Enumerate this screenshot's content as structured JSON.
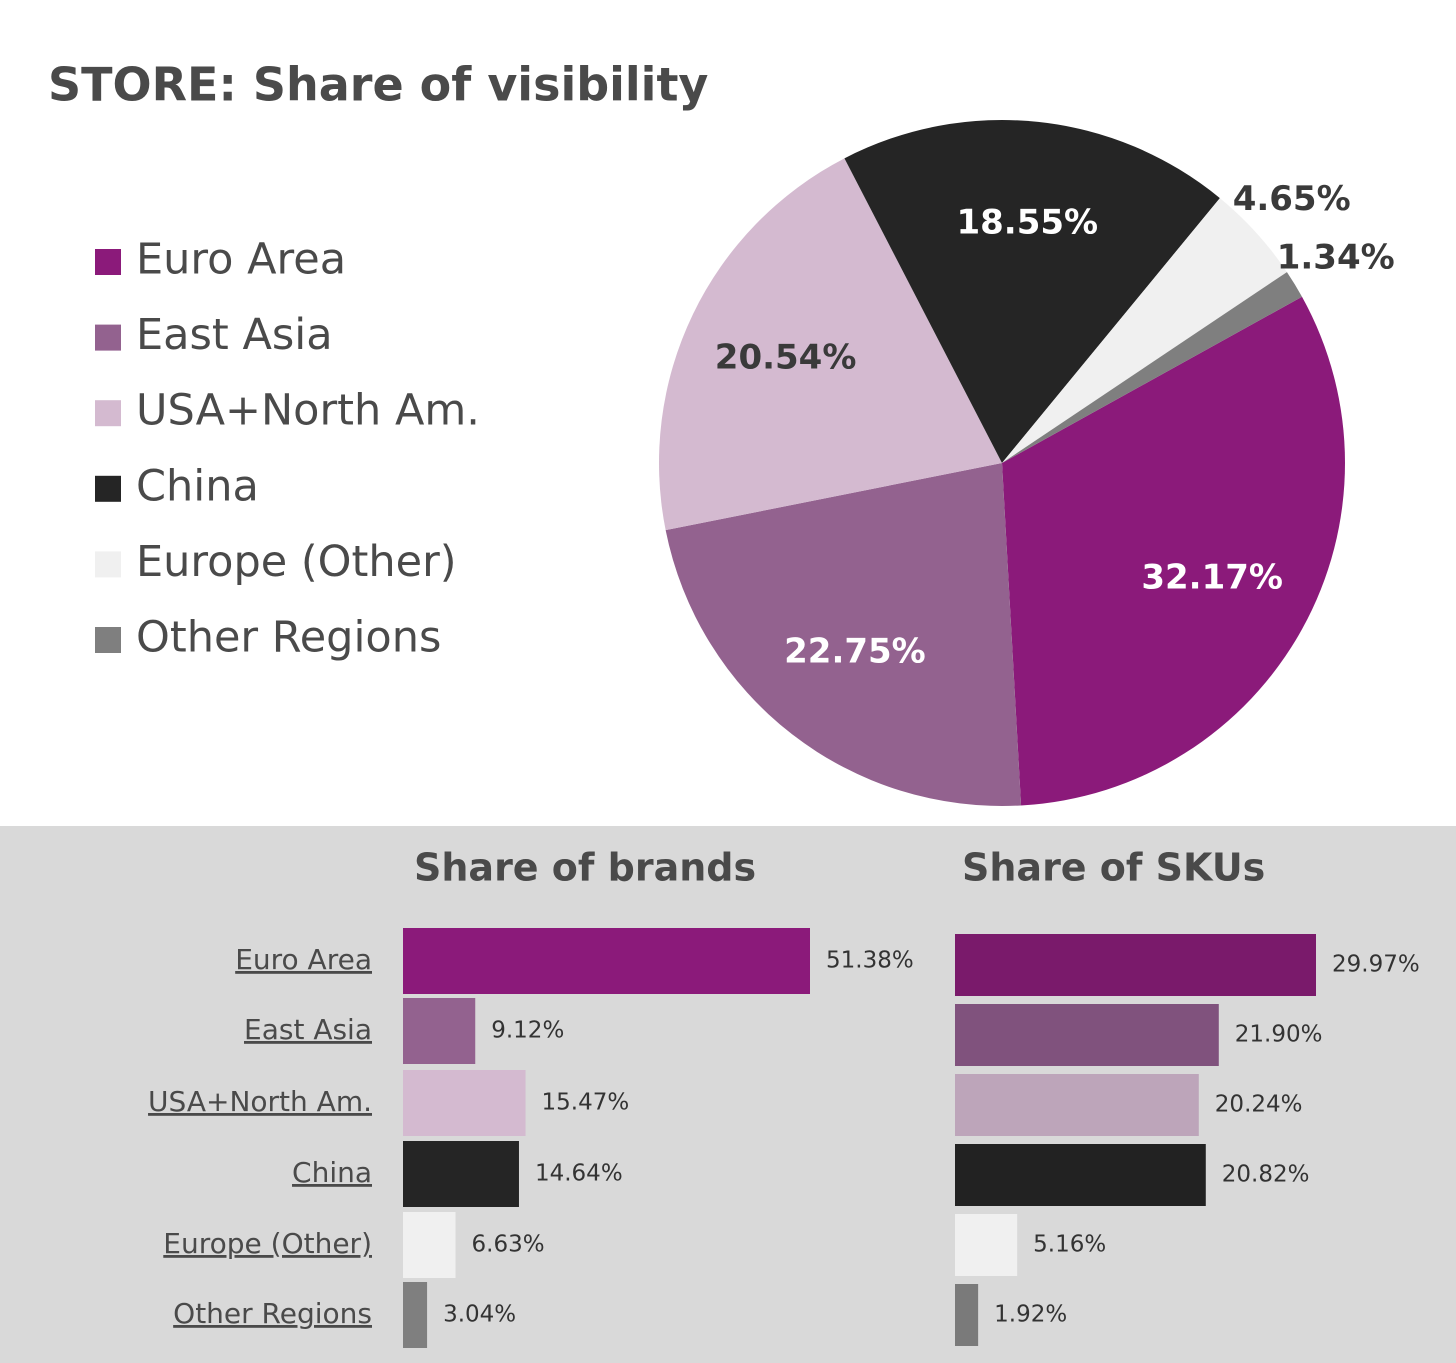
{
  "chart_data": [
    {
      "type": "pie",
      "title": "STORE: Share of visibility",
      "categories": [
        "Euro Area",
        "East Asia",
        "USA+North Am.",
        "China",
        "Europe (Other)",
        "Other Regions"
      ],
      "values": [
        32.17,
        22.75,
        20.54,
        18.55,
        4.65,
        1.34
      ],
      "value_labels": [
        "32.17%",
        "22.75%",
        "20.54%",
        "18.55%",
        "4.65%",
        "1.34%"
      ],
      "colors": [
        "#8b1a7a",
        "#93628f",
        "#d4bad0",
        "#252525",
        "#f0f0f0",
        "#7f7f7f"
      ],
      "legend": "left"
    },
    {
      "type": "bar",
      "orientation": "horizontal",
      "title": "Share of brands",
      "categories": [
        "Euro Area",
        "East Asia",
        "USA+North Am.",
        "China",
        "Europe (Other)",
        "Other Regions"
      ],
      "values": [
        51.38,
        9.12,
        15.47,
        14.64,
        6.63,
        3.04
      ],
      "value_labels": [
        "51.38%",
        "9.12%",
        "15.47%",
        "14.64%",
        "6.63%",
        "3.04%"
      ],
      "colors": [
        "#8b1a7a",
        "#93628f",
        "#d4bad0",
        "#252525",
        "#f0f0f0",
        "#7f7f7f"
      ]
    },
    {
      "type": "bar",
      "orientation": "horizontal",
      "title": "Share of SKUs",
      "categories": [
        "Euro Area",
        "East Asia",
        "USA+North Am.",
        "China",
        "Europe (Other)",
        "Other Regions"
      ],
      "values": [
        29.97,
        21.9,
        20.24,
        20.82,
        5.16,
        1.92
      ],
      "value_labels": [
        "29.97%",
        "21.90%",
        "20.24%",
        "20.82%",
        "5.16%",
        "1.92%"
      ],
      "colors": [
        "#7a1a6b",
        "#80527d",
        "#bda5ba",
        "#222222",
        "#f0f0f0",
        "#7a7a7a"
      ]
    }
  ]
}
